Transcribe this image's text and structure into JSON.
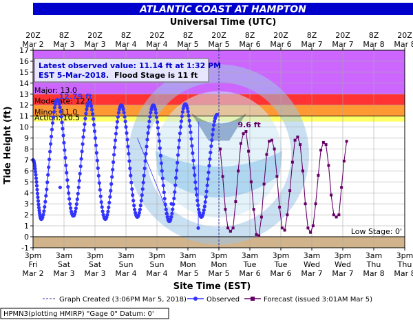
{
  "header": {
    "title": "ATLANTIC COAST AT HAMPTON"
  },
  "top_axis": {
    "title": "Universal Time (UTC)"
  },
  "bottom_axis": {
    "title": "Site Time (EST)"
  },
  "y_axis": {
    "title": "Tide Height (ft)"
  },
  "info_box": {
    "line1": "Latest observed value: 11.14 ft at 1:32 PM",
    "line2_prefix": "EST 5-Mar-2018.",
    "line2_suffix": "Flood Stage is 11 ft"
  },
  "bands": [
    {
      "label": "Major: 13.0",
      "from": 13,
      "to": 17,
      "color": "#cc66ff"
    },
    {
      "label": "Moderate: 12.0",
      "from": 12,
      "to": 13,
      "color": "#ff3333"
    },
    {
      "label": "Minor: 11.0",
      "from": 11,
      "to": 12,
      "color": "#ff9933"
    },
    {
      "label": "Action: 10.5",
      "from": 10.5,
      "to": 11,
      "color": "#ffff66"
    }
  ],
  "low_stage": {
    "label": "Low Stage: 0'",
    "value": 0,
    "color": "#d2b48c"
  },
  "annotations": {
    "max_observed": "12.79 ft",
    "max_forecast": "9.6 ft"
  },
  "legend": {
    "graph_created": "Graph Created (3:06PM Mar 5, 2018)",
    "observed": "Observed",
    "forecast": "Forecast (issued 3:01AM Mar 5)"
  },
  "footer": {
    "text": "HPMN3(plotting HMIRP) \"Gage 0\" Datum: 0'"
  },
  "colors": {
    "title_bg": "#0000cc",
    "observed": "#3333ff",
    "forecast": "#660066",
    "grid": "#aaaaaa",
    "now_line": "#333399"
  },
  "chart_data": {
    "type": "line",
    "ylim": [
      -1,
      17
    ],
    "xlim_hours": [
      0,
      144
    ],
    "yticks": [
      -1,
      0,
      1,
      2,
      3,
      4,
      5,
      6,
      7,
      8,
      9,
      10,
      11,
      12,
      13,
      14,
      15,
      16,
      17
    ],
    "bottom_ticks": [
      {
        "hour": 0,
        "line1": "3pm",
        "line2": "Fri",
        "line3": "Mar 2"
      },
      {
        "hour": 12,
        "line1": "3am",
        "line2": "Sat",
        "line3": "Mar 3"
      },
      {
        "hour": 24,
        "line1": "3pm",
        "line2": "Sat",
        "line3": "Mar 3"
      },
      {
        "hour": 36,
        "line1": "3am",
        "line2": "Sun",
        "line3": "Mar 4"
      },
      {
        "hour": 48,
        "line1": "3pm",
        "line2": "Sun",
        "line3": "Mar 4"
      },
      {
        "hour": 60,
        "line1": "3am",
        "line2": "Mon",
        "line3": "Mar 5"
      },
      {
        "hour": 72,
        "line1": "3pm",
        "line2": "Mon",
        "line3": "Mar 5"
      },
      {
        "hour": 84,
        "line1": "3am",
        "line2": "Tue",
        "line3": "Mar 6"
      },
      {
        "hour": 96,
        "line1": "3pm",
        "line2": "Tue",
        "line3": "Mar 6"
      },
      {
        "hour": 108,
        "line1": "3am",
        "line2": "Wed",
        "line3": "Mar 7"
      },
      {
        "hour": 120,
        "line1": "3pm",
        "line2": "Wed",
        "line3": "Mar 7"
      },
      {
        "hour": 132,
        "line1": "3am",
        "line2": "Thu",
        "line3": "Mar 8"
      },
      {
        "hour": 144,
        "line1": "3pm",
        "line2": "Thu",
        "line3": "Mar 8"
      }
    ],
    "top_ticks": [
      {
        "hour": 0,
        "line1": "20Z",
        "line2": "Mar 2"
      },
      {
        "hour": 12,
        "line1": "8Z",
        "line2": "Mar 3"
      },
      {
        "hour": 24,
        "line1": "20Z",
        "line2": "Mar 3"
      },
      {
        "hour": 36,
        "line1": "8Z",
        "line2": "Mar 4"
      },
      {
        "hour": 48,
        "line1": "20Z",
        "line2": "Mar 4"
      },
      {
        "hour": 60,
        "line1": "8Z",
        "line2": "Mar 5"
      },
      {
        "hour": 72,
        "line1": "20Z",
        "line2": "Mar 5"
      },
      {
        "hour": 84,
        "line1": "8Z",
        "line2": "Mar 6"
      },
      {
        "hour": 96,
        "line1": "20Z",
        "line2": "Mar 6"
      },
      {
        "hour": 108,
        "line1": "8Z",
        "line2": "Mar 7"
      },
      {
        "hour": 120,
        "line1": "20Z",
        "line2": "Mar 7"
      },
      {
        "hour": 132,
        "line1": "8Z",
        "line2": "Mar 8"
      },
      {
        "hour": 144,
        "line1": "20Z",
        "line2": "Mar 8"
      }
    ],
    "now_hour": 72,
    "max_observed_point": {
      "hour": 6.8,
      "value": 12.79
    },
    "max_forecast_point": {
      "hour": 82.5,
      "value": 9.6
    },
    "observed_peaks": [
      {
        "hour": 0,
        "value": 7.0
      },
      {
        "hour": 3.2,
        "value": 1.6
      },
      {
        "hour": 9.4,
        "value": 12.5
      },
      {
        "hour": 15.6,
        "value": 1.9
      },
      {
        "hour": 21.8,
        "value": 12.3
      },
      {
        "hour": 28.0,
        "value": 1.6
      },
      {
        "hour": 34.2,
        "value": 12.0
      },
      {
        "hour": 40.4,
        "value": 1.8
      },
      {
        "hour": 46.6,
        "value": 12.0
      },
      {
        "hour": 52.8,
        "value": 1.4
      },
      {
        "hour": 59.0,
        "value": 12.1
      },
      {
        "hour": 65.2,
        "value": 1.8
      },
      {
        "hour": 71.3,
        "value": 11.14
      }
    ],
    "observed_spikes": [
      {
        "hour": 10.5,
        "value": 4.5
      },
      {
        "hour": 64.0,
        "value": 0.8
      },
      {
        "hour": 53.6,
        "value": 3.0
      }
    ],
    "forecast": [
      {
        "hour": 72.5,
        "value": 8.0
      },
      {
        "hour": 73.5,
        "value": 5.5
      },
      {
        "hour": 74.5,
        "value": 2.5
      },
      {
        "hour": 75.5,
        "value": 0.8
      },
      {
        "hour": 76.5,
        "value": 0.5
      },
      {
        "hour": 77.5,
        "value": 0.8
      },
      {
        "hour": 78.5,
        "value": 3.2
      },
      {
        "hour": 79.5,
        "value": 6.0
      },
      {
        "hour": 80.5,
        "value": 8.5
      },
      {
        "hour": 81.5,
        "value": 9.4
      },
      {
        "hour": 82.5,
        "value": 9.6
      },
      {
        "hour": 83.5,
        "value": 7.8
      },
      {
        "hour": 84.5,
        "value": 5.0
      },
      {
        "hour": 85.5,
        "value": 2.5
      },
      {
        "hour": 86.5,
        "value": 0.2
      },
      {
        "hour": 87.5,
        "value": 0.1
      },
      {
        "hour": 88.5,
        "value": 1.8
      },
      {
        "hour": 89.5,
        "value": 4.8
      },
      {
        "hour": 90.5,
        "value": 7.5
      },
      {
        "hour": 91.5,
        "value": 8.7
      },
      {
        "hour": 92.5,
        "value": 8.8
      },
      {
        "hour": 93.5,
        "value": 8.0
      },
      {
        "hour": 94.5,
        "value": 5.5
      },
      {
        "hour": 95.5,
        "value": 2.7
      },
      {
        "hour": 96.5,
        "value": 0.8
      },
      {
        "hour": 97.5,
        "value": 0.6
      },
      {
        "hour": 98.5,
        "value": 2.0
      },
      {
        "hour": 99.5,
        "value": 4.2
      },
      {
        "hour": 100.5,
        "value": 6.8
      },
      {
        "hour": 101.5,
        "value": 8.8
      },
      {
        "hour": 102.5,
        "value": 9.1
      },
      {
        "hour": 103.5,
        "value": 8.4
      },
      {
        "hour": 104.5,
        "value": 6.0
      },
      {
        "hour": 105.5,
        "value": 3.0
      },
      {
        "hour": 106.5,
        "value": 0.8
      },
      {
        "hour": 107.5,
        "value": 0.4
      },
      {
        "hour": 108.5,
        "value": 1.0
      },
      {
        "hour": 109.5,
        "value": 3.0
      },
      {
        "hour": 110.5,
        "value": 5.6
      },
      {
        "hour": 111.5,
        "value": 7.9
      },
      {
        "hour": 112.5,
        "value": 8.6
      },
      {
        "hour": 113.5,
        "value": 8.4
      },
      {
        "hour": 114.5,
        "value": 6.5
      },
      {
        "hour": 115.5,
        "value": 3.8
      },
      {
        "hour": 116.5,
        "value": 2.0
      },
      {
        "hour": 117.5,
        "value": 1.8
      },
      {
        "hour": 118.5,
        "value": 2.0
      },
      {
        "hour": 119.5,
        "value": 4.5
      },
      {
        "hour": 120.5,
        "value": 6.9
      },
      {
        "hour": 121.5,
        "value": 8.7
      }
    ]
  }
}
